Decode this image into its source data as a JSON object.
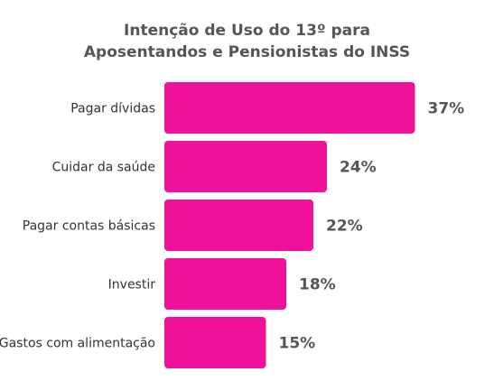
{
  "chart_data": {
    "type": "bar",
    "orientation": "horizontal",
    "title": "Intenção de Uso do 13º para Aposentandos e Pensionistas do INSS",
    "title_lines": [
      "Intenção de Uso do 13º para",
      "Aposentandos e Pensionistas do INSS"
    ],
    "categories": [
      "Pagar dívidas",
      "Cuidar da saúde",
      "Pagar contas básicas",
      "Investir",
      "Gastos com alimentação"
    ],
    "values": [
      37,
      24,
      22,
      18,
      15
    ],
    "value_labels": [
      "37%",
      "24%",
      "22%",
      "18%",
      "15%"
    ],
    "unit": "%",
    "bar_color": "#EE1199",
    "grid": false,
    "legend": "none"
  }
}
